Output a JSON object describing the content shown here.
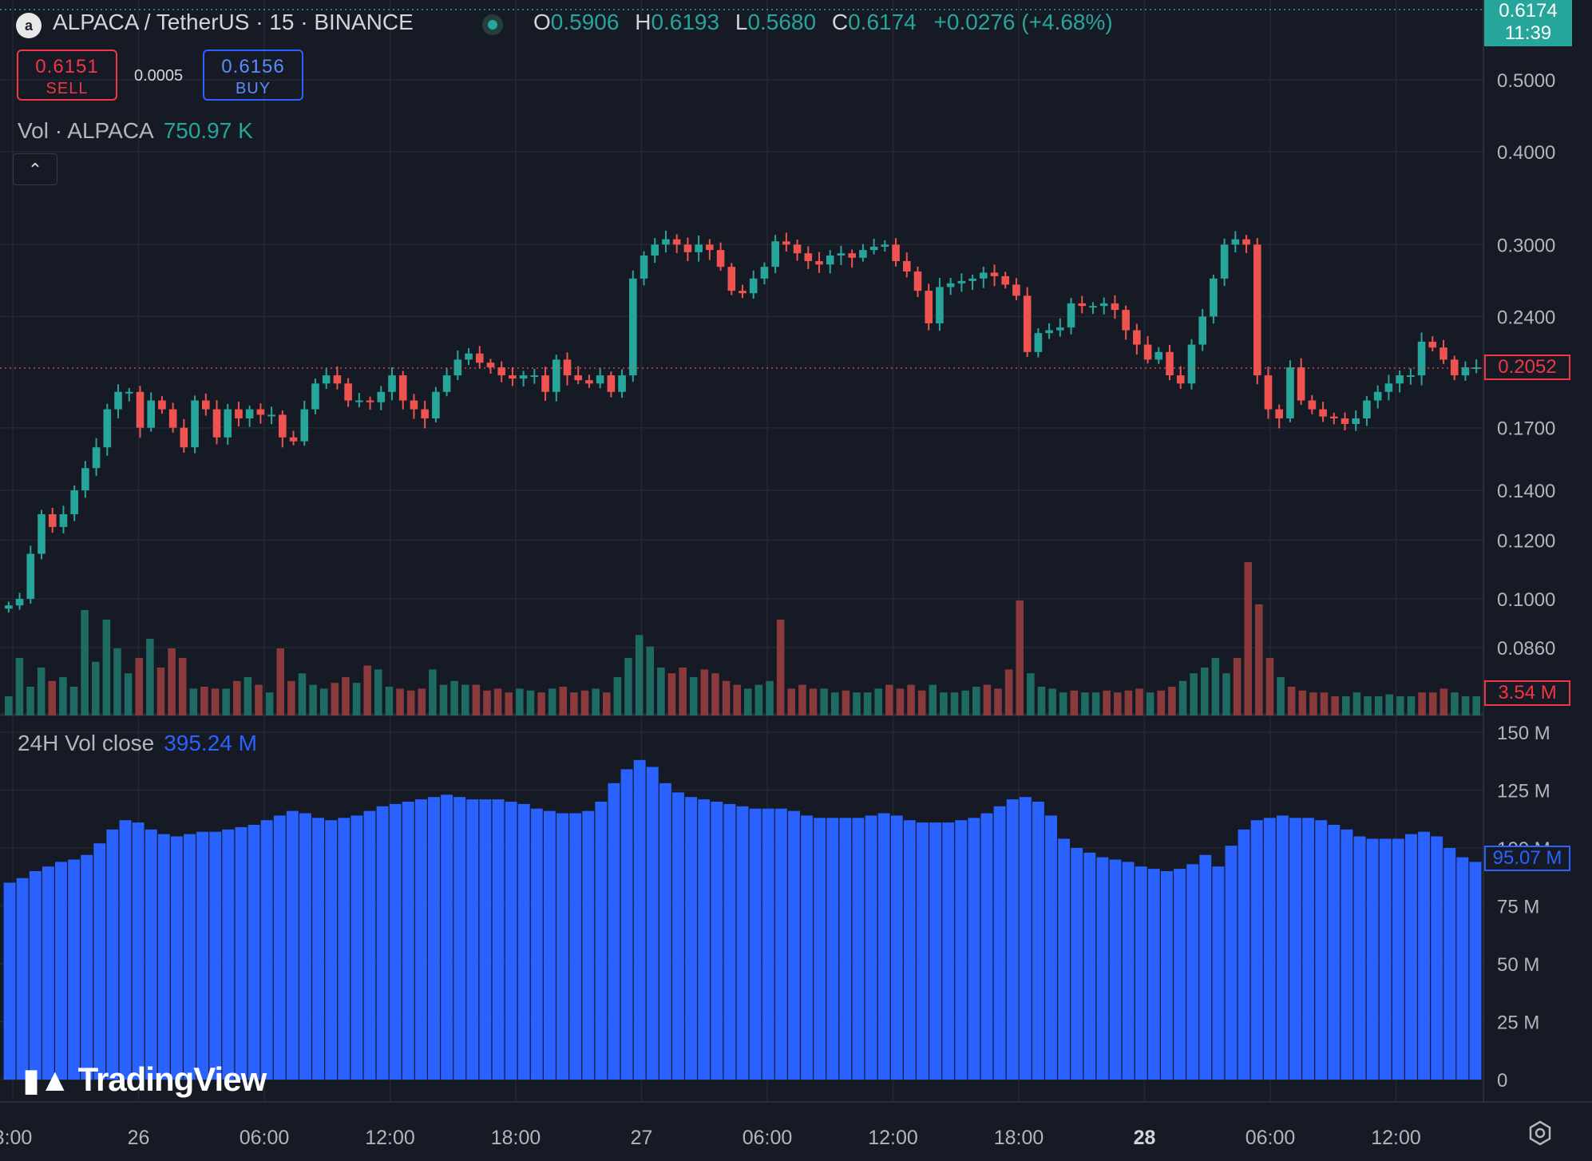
{
  "header": {
    "symbol_title": "ALPACA / TetherUS · 15 · BINANCE",
    "ohlc": {
      "o_label": "O",
      "o_value": "0.5906",
      "h_label": "H",
      "h_value": "0.6193",
      "l_label": "L",
      "l_value": "0.5680",
      "c_label": "C",
      "c_value": "0.6174",
      "change": "+0.0276 (+4.68%)"
    }
  },
  "trade": {
    "sell_price": "0.6151",
    "sell_label": "SELL",
    "spread": "0.0005",
    "buy_price": "0.6156",
    "buy_label": "BUY"
  },
  "price_tag": {
    "price": "0.6174",
    "countdown": "11:39"
  },
  "volume_legend": {
    "label": "Vol · ALPACA",
    "value": "750.97 K",
    "tag": "3.54 M"
  },
  "vol24_legend": {
    "label": "24H Vol close",
    "value": "395.24 M",
    "tag": "95.07 M"
  },
  "last_price_tag": "0.2052",
  "collapse_icon": "chevron-up-icon",
  "branding": "TradingView",
  "colors": {
    "up": "#26a69a",
    "down": "#ef5350",
    "vol24": "#2962ff",
    "background": "#161a25",
    "grid": "#242833"
  },
  "chart_data": [
    {
      "type": "candlestick",
      "name": "ALPACA / TetherUS",
      "price_axis_ticks": [
        "0.5000",
        "0.4000",
        "0.3000",
        "0.2400",
        "0.1700",
        "0.1400",
        "0.1200",
        "0.1000",
        "0.0860"
      ],
      "price_axis_scale": "log",
      "ylim": [
        0.0775,
        0.62
      ],
      "time_axis_ticks": [
        "3:00",
        "26",
        "06:00",
        "12:00",
        "18:00",
        "27",
        "06:00",
        "12:00",
        "18:00",
        "28",
        "06:00",
        "12:00"
      ],
      "bars_per_tick": 24,
      "last_price": 0.2052,
      "closes": [
        0.098,
        0.1,
        0.115,
        0.13,
        0.125,
        0.13,
        0.14,
        0.15,
        0.16,
        0.18,
        0.19,
        0.19,
        0.17,
        0.185,
        0.18,
        0.17,
        0.16,
        0.185,
        0.18,
        0.165,
        0.18,
        0.175,
        0.18,
        0.177,
        0.177,
        0.165,
        0.163,
        0.18,
        0.195,
        0.2,
        0.195,
        0.185,
        0.185,
        0.184,
        0.19,
        0.2,
        0.185,
        0.18,
        0.175,
        0.19,
        0.2,
        0.21,
        0.214,
        0.208,
        0.205,
        0.2,
        0.198,
        0.2,
        0.2,
        0.19,
        0.21,
        0.2,
        0.197,
        0.195,
        0.2,
        0.19,
        0.2,
        0.27,
        0.29,
        0.3,
        0.305,
        0.3,
        0.293,
        0.3,
        0.295,
        0.28,
        0.26,
        0.258,
        0.27,
        0.28,
        0.303,
        0.3,
        0.292,
        0.285,
        0.282,
        0.29,
        0.292,
        0.288,
        0.295,
        0.298,
        0.3,
        0.285,
        0.276,
        0.26,
        0.235,
        0.263,
        0.266,
        0.268,
        0.27,
        0.275,
        0.272,
        0.265,
        0.256,
        0.215,
        0.228,
        0.23,
        0.232,
        0.25,
        0.248,
        0.248,
        0.25,
        0.245,
        0.23,
        0.22,
        0.21,
        0.215,
        0.2,
        0.195,
        0.22,
        0.24,
        0.27,
        0.3,
        0.305,
        0.3,
        0.2,
        0.18,
        0.175,
        0.205,
        0.185,
        0.18,
        0.176,
        0.175,
        0.172,
        0.175,
        0.185,
        0.19,
        0.195,
        0.2,
        0.2,
        0.222,
        0.218,
        0.21,
        0.2,
        0.205,
        0.205
      ]
    },
    {
      "type": "bar",
      "name": "Vol · ALPACA",
      "color_rule": "matches candle direction",
      "tag_value": "3.54 M",
      "relative_heights": [
        0.1,
        0.3,
        0.15,
        0.25,
        0.18,
        0.2,
        0.15,
        0.55,
        0.28,
        0.5,
        0.35,
        0.22,
        0.3,
        0.4,
        0.25,
        0.35,
        0.3,
        0.14,
        0.15,
        0.14,
        0.14,
        0.18,
        0.2,
        0.16,
        0.12,
        0.35,
        0.18,
        0.22,
        0.16,
        0.14,
        0.17,
        0.2,
        0.17,
        0.26,
        0.24,
        0.15,
        0.14,
        0.13,
        0.14,
        0.24,
        0.16,
        0.18,
        0.16,
        0.16,
        0.13,
        0.14,
        0.12,
        0.14,
        0.13,
        0.12,
        0.14,
        0.15,
        0.12,
        0.13,
        0.14,
        0.12,
        0.2,
        0.3,
        0.42,
        0.36,
        0.25,
        0.22,
        0.25,
        0.2,
        0.24,
        0.22,
        0.18,
        0.16,
        0.14,
        0.16,
        0.18,
        0.5,
        0.14,
        0.16,
        0.14,
        0.14,
        0.12,
        0.13,
        0.12,
        0.12,
        0.14,
        0.16,
        0.14,
        0.16,
        0.13,
        0.16,
        0.12,
        0.12,
        0.13,
        0.15,
        0.16,
        0.14,
        0.24,
        0.6,
        0.22,
        0.15,
        0.14,
        0.12,
        0.13,
        0.12,
        0.12,
        0.13,
        0.12,
        0.13,
        0.14,
        0.12,
        0.13,
        0.15,
        0.18,
        0.22,
        0.25,
        0.3,
        0.22,
        0.3,
        0.8,
        0.58,
        0.3,
        0.2,
        0.15,
        0.13,
        0.12,
        0.12,
        0.1,
        0.1,
        0.12,
        0.1,
        0.1,
        0.11,
        0.1,
        0.1,
        0.12,
        0.12,
        0.14,
        0.12,
        0.1,
        0.1
      ]
    },
    {
      "type": "bar",
      "name": "24H Vol close",
      "y_axis_ticks": [
        "150 M",
        "125 M",
        "100 M",
        "75 M",
        "50 M",
        "25 M",
        "0"
      ],
      "ylim": [
        0,
        150
      ],
      "unit": "M",
      "values": [
        85,
        87,
        90,
        92,
        94,
        95,
        97,
        102,
        108,
        112,
        111,
        108,
        106,
        105,
        106,
        107,
        107,
        108,
        109,
        110,
        112,
        114,
        116,
        115,
        113,
        112,
        113,
        114,
        116,
        118,
        119,
        120,
        121,
        122,
        123,
        122,
        121,
        121,
        121,
        120,
        119,
        117,
        116,
        115,
        115,
        116,
        120,
        128,
        134,
        138,
        135,
        128,
        124,
        122,
        121,
        120,
        119,
        118,
        117,
        117,
        117,
        116,
        114,
        113,
        113,
        113,
        113,
        114,
        115,
        114,
        112,
        111,
        111,
        111,
        112,
        113,
        115,
        118,
        121,
        122,
        120,
        114,
        104,
        100,
        98,
        96,
        95,
        94,
        92,
        91,
        90,
        91,
        93,
        97,
        92,
        101,
        108,
        112,
        113,
        114,
        113,
        113,
        112,
        110,
        108,
        105,
        104,
        104,
        104,
        106,
        107,
        105,
        100,
        96,
        94
      ]
    }
  ]
}
